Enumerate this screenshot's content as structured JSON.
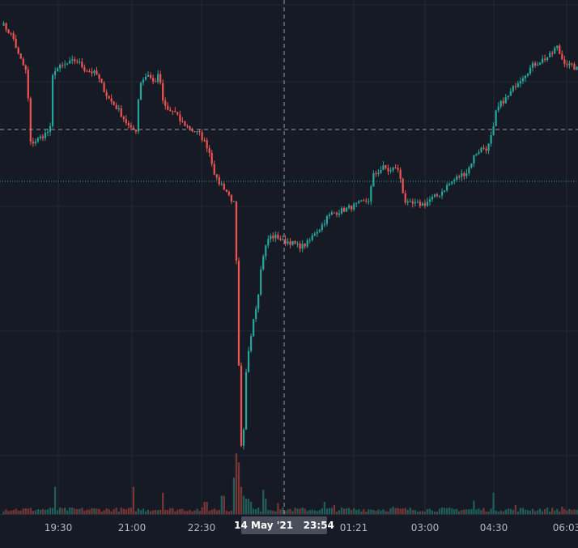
{
  "chart_data": {
    "type": "candlestick",
    "x_axis": {
      "ticks": [
        "19:30",
        "21:00",
        "22:30",
        "01:21",
        "03:00",
        "04:30",
        "06:03"
      ]
    },
    "crosshair": {
      "label": "14 May '21   23:54"
    },
    "colors": {
      "background": "#161a25",
      "grid": "#242833",
      "up": "#26a69a",
      "down": "#ef5350",
      "volume_up": "#1f5f59",
      "volume_down": "#7a3535",
      "crosshair": "#9598a1",
      "price_line": "#26a69a",
      "axis_text": "#b2b5be",
      "label_bg": "#4a4e5a"
    },
    "close_path": [
      [
        0,
        96
      ],
      [
        0.02,
        93
      ],
      [
        0.03,
        89
      ],
      [
        0.045,
        85
      ],
      [
        0.05,
        70
      ],
      [
        0.065,
        71
      ],
      [
        0.085,
        73
      ],
      [
        0.09,
        86
      ],
      [
        0.095,
        86
      ],
      [
        0.13,
        88
      ],
      [
        0.145,
        86
      ],
      [
        0.165,
        85
      ],
      [
        0.185,
        80
      ],
      [
        0.205,
        77
      ],
      [
        0.225,
        73
      ],
      [
        0.235,
        73
      ],
      [
        0.24,
        83
      ],
      [
        0.255,
        85
      ],
      [
        0.265,
        83
      ],
      [
        0.275,
        85
      ],
      [
        0.28,
        79
      ],
      [
        0.29,
        77
      ],
      [
        0.3,
        77
      ],
      [
        0.31,
        75
      ],
      [
        0.33,
        73
      ],
      [
        0.345,
        72
      ],
      [
        0.36,
        69
      ],
      [
        0.37,
        64
      ],
      [
        0.375,
        62
      ],
      [
        0.385,
        61
      ],
      [
        0.39,
        60
      ],
      [
        0.395,
        59
      ],
      [
        0.4,
        58
      ],
      [
        0.405,
        57
      ],
      [
        0.41,
        39
      ],
      [
        0.415,
        8
      ],
      [
        0.418,
        3
      ],
      [
        0.42,
        4
      ],
      [
        0.425,
        20
      ],
      [
        0.43,
        26
      ],
      [
        0.435,
        30
      ],
      [
        0.44,
        34
      ],
      [
        0.445,
        36
      ],
      [
        0.45,
        42
      ],
      [
        0.455,
        46
      ],
      [
        0.46,
        48
      ],
      [
        0.465,
        50
      ],
      [
        0.47,
        50
      ],
      [
        0.48,
        50
      ],
      [
        0.49,
        49
      ],
      [
        0.5,
        49
      ],
      [
        0.515,
        48
      ],
      [
        0.525,
        48
      ],
      [
        0.535,
        49
      ],
      [
        0.545,
        51
      ],
      [
        0.555,
        52
      ],
      [
        0.565,
        54
      ],
      [
        0.575,
        55
      ],
      [
        0.6,
        56
      ],
      [
        0.62,
        57
      ],
      [
        0.64,
        58
      ],
      [
        0.645,
        63
      ],
      [
        0.655,
        64
      ],
      [
        0.665,
        65
      ],
      [
        0.675,
        64
      ],
      [
        0.685,
        65
      ],
      [
        0.69,
        64
      ],
      [
        0.695,
        62
      ],
      [
        0.7,
        58
      ],
      [
        0.705,
        57
      ],
      [
        0.72,
        57
      ],
      [
        0.735,
        57
      ],
      [
        0.745,
        58
      ],
      [
        0.76,
        59
      ],
      [
        0.775,
        61
      ],
      [
        0.785,
        62
      ],
      [
        0.795,
        63
      ],
      [
        0.81,
        64
      ],
      [
        0.82,
        67
      ],
      [
        0.825,
        68
      ],
      [
        0.835,
        69
      ],
      [
        0.845,
        69
      ],
      [
        0.855,
        73
      ],
      [
        0.86,
        77
      ],
      [
        0.87,
        79
      ],
      [
        0.88,
        80
      ],
      [
        0.895,
        83
      ],
      [
        0.91,
        85
      ],
      [
        0.925,
        87
      ],
      [
        0.94,
        88
      ],
      [
        0.955,
        89
      ],
      [
        0.965,
        91
      ],
      [
        0.975,
        88
      ],
      [
        0.985,
        87
      ],
      [
        1,
        86
      ]
    ],
    "volume_spikes": [
      [
        0.095,
        0.45
      ],
      [
        0.23,
        0.45
      ],
      [
        0.28,
        0.35
      ],
      [
        0.355,
        0.2
      ],
      [
        0.385,
        0.3
      ],
      [
        0.405,
        0.6
      ],
      [
        0.408,
        1.0
      ],
      [
        0.411,
        0.85
      ],
      [
        0.414,
        0.75
      ],
      [
        0.418,
        0.45
      ],
      [
        0.422,
        0.3
      ],
      [
        0.428,
        0.25
      ],
      [
        0.435,
        0.2
      ],
      [
        0.455,
        0.4
      ],
      [
        0.46,
        0.25
      ],
      [
        0.48,
        0.18
      ],
      [
        0.56,
        0.2
      ],
      [
        0.58,
        0.15
      ],
      [
        0.68,
        0.12
      ],
      [
        0.82,
        0.22
      ],
      [
        0.855,
        0.35
      ],
      [
        0.895,
        0.15
      ],
      [
        0.975,
        0.12
      ]
    ]
  }
}
